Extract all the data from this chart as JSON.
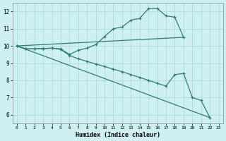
{
  "xlabel": "Humidex (Indice chaleur)",
  "bg_color": "#cff0f0",
  "grid_color": "#a8d8d8",
  "line_color": "#2e7d6e",
  "xlim": [
    -0.5,
    23.5
  ],
  "ylim": [
    5.5,
    12.5
  ],
  "xticks": [
    0,
    1,
    2,
    3,
    4,
    5,
    6,
    7,
    8,
    9,
    10,
    11,
    12,
    13,
    14,
    15,
    16,
    17,
    18,
    19,
    20,
    21,
    22,
    23
  ],
  "yticks": [
    6,
    7,
    8,
    9,
    10,
    11,
    12
  ],
  "curve1_x": [
    0,
    1,
    2,
    3,
    4,
    5,
    6,
    7,
    8,
    9,
    10,
    11,
    12,
    13,
    14,
    15,
    16,
    17,
    18,
    19
  ],
  "curve1_y": [
    10.0,
    9.83,
    9.83,
    9.85,
    9.87,
    9.83,
    9.5,
    9.75,
    9.87,
    10.08,
    10.55,
    11.0,
    11.1,
    11.5,
    11.6,
    12.17,
    12.17,
    11.75,
    11.67,
    10.5
  ],
  "curve2_x": [
    0,
    19
  ],
  "curve2_y": [
    10.0,
    10.5
  ],
  "curve3_x": [
    0,
    1,
    2,
    3,
    4,
    5,
    6,
    7,
    8,
    9,
    10,
    11,
    12,
    13,
    14,
    15,
    16,
    17,
    18,
    19,
    20,
    21,
    22
  ],
  "curve3_y": [
    10.0,
    9.83,
    9.83,
    9.85,
    9.87,
    9.8,
    9.45,
    9.25,
    9.1,
    8.95,
    8.8,
    8.65,
    8.5,
    8.33,
    8.17,
    8.0,
    7.83,
    7.67,
    8.33,
    8.4,
    7.0,
    6.83,
    5.83
  ],
  "curve4_x": [
    0,
    22
  ],
  "curve4_y": [
    10.0,
    5.83
  ]
}
